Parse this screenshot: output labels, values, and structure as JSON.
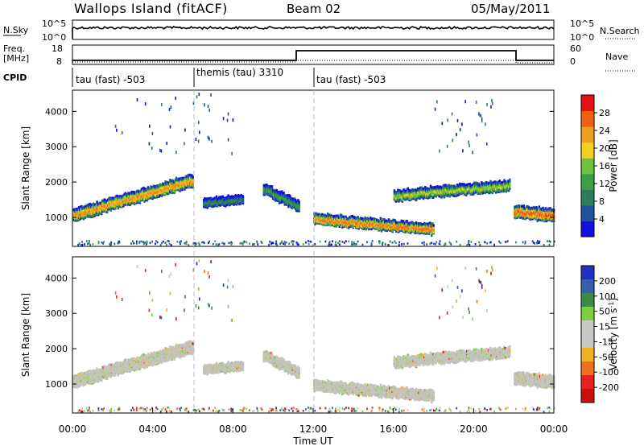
{
  "header": {
    "station": "Wallops Island (fitACF)",
    "beam": "Beam 02",
    "date": "05/May/2011"
  },
  "strip_panels": {
    "nsky": {
      "left_label": "N.Sky",
      "right_label": "N.Search",
      "ticks": [
        "10^5",
        "10^0"
      ]
    },
    "freq": {
      "left_label_1": "Freq.",
      "left_label_2": "[MHz]",
      "right_label": "Nave",
      "left_ticks": [
        "18",
        "8"
      ],
      "right_ticks": [
        "60",
        "0"
      ]
    },
    "cpid": {
      "label": "CPID",
      "segments": [
        {
          "label": "tau (fast) -503",
          "start_h": 0,
          "end_h": 6
        },
        {
          "label": "themis (tau) 3310",
          "start_h": 6,
          "end_h": 12
        },
        {
          "label": "tau (fast) -503",
          "start_h": 12,
          "end_h": 24
        }
      ]
    }
  },
  "colors": {
    "power_scale": [
      "#1010e0",
      "#2050a0",
      "#2e7d5a",
      "#3aa046",
      "#6cc23a",
      "#f0d020",
      "#f0a020",
      "#f06010",
      "#e81010"
    ],
    "velocity_scale": [
      "#2030c0",
      "#3860a8",
      "#3c8a4a",
      "#7cd040",
      "#c8c8c0",
      "#c8c8c0",
      "#f0b020",
      "#f07020",
      "#e82020",
      "#c81010"
    ],
    "ground_scatter": "#c4c4bc"
  },
  "chart_data": [
    {
      "type": "heatmap",
      "panel": "power",
      "ylabel": "Slant Range [km]",
      "ylim": [
        180,
        4600
      ],
      "xlim": [
        0,
        24
      ],
      "yticks": [
        "1000",
        "2000",
        "3000",
        "4000"
      ],
      "colorbar": {
        "label": "Power [dB]",
        "ticks": [
          "28",
          "24",
          "20",
          "16",
          "12",
          "8",
          "4"
        ]
      },
      "bands": [
        {
          "start_h": 0.0,
          "end_h": 6.0,
          "range_start_km": 1050,
          "range_end_km": 2050,
          "width_km": 300,
          "core_db": 24
        },
        {
          "start_h": 6.5,
          "end_h": 8.5,
          "range_start_km": 1400,
          "range_end_km": 1500,
          "width_km": 200,
          "core_db": 10
        },
        {
          "start_h": 9.5,
          "end_h": 11.3,
          "range_start_km": 1800,
          "range_end_km": 1300,
          "width_km": 250,
          "core_db": 12
        },
        {
          "start_h": 12.0,
          "end_h": 18.0,
          "range_start_km": 950,
          "range_end_km": 650,
          "width_km": 250,
          "core_db": 26
        },
        {
          "start_h": 16.0,
          "end_h": 21.8,
          "range_start_km": 1600,
          "range_end_km": 1900,
          "width_km": 250,
          "core_db": 18
        },
        {
          "start_h": 22.0,
          "end_h": 24.0,
          "range_start_km": 1150,
          "range_end_km": 1050,
          "width_km": 300,
          "core_db": 27
        }
      ]
    },
    {
      "type": "heatmap",
      "panel": "velocity",
      "ylabel": "Slant Range [km]",
      "xlabel": "Time UT",
      "ylim": [
        180,
        4600
      ],
      "xlim": [
        0,
        24
      ],
      "yticks": [
        "1000",
        "2000",
        "3000",
        "4000"
      ],
      "xticks": [
        "00:00",
        "04:00",
        "08:00",
        "12:00",
        "16:00",
        "20:00",
        "00:00"
      ],
      "colorbar": {
        "label": "Velocity [m s^-1]",
        "ticks": [
          "200",
          "100",
          "50",
          "15",
          "-15",
          "-50",
          "-100",
          "-200"
        ]
      },
      "note": "mostly ground scatter (grey) following the same echo regions as the power panel"
    }
  ]
}
